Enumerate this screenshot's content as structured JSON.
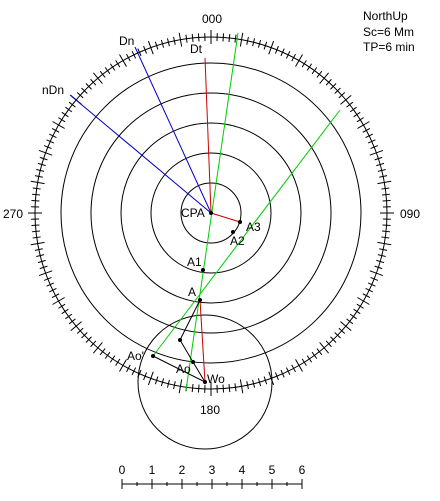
{
  "bearings": {
    "north": "000",
    "east": "090",
    "south": "180",
    "west": "270"
  },
  "info": {
    "mode": "NorthUp",
    "scale": "Sc=6 Mm",
    "period": "TP=6 min"
  },
  "labels": {
    "dn": "Dn",
    "ndn": "nDn",
    "dt": "Dt",
    "cpa": "CPA",
    "a3": "A3",
    "a2": "A2",
    "a1": "A1",
    "a": "A",
    "ao_prime": "Ao'",
    "ao": "Ao",
    "wo": "Wo"
  },
  "scale_bar": [
    0,
    1,
    2,
    3,
    4,
    5,
    6
  ]
}
